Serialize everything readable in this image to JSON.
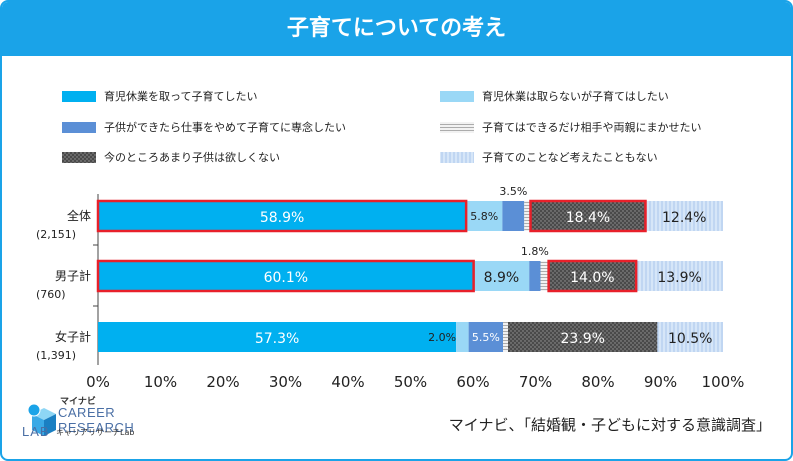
{
  "header": {
    "title": "子育てについての考え"
  },
  "source_note": "マイナビ、「結婚観・子どもに対する意識調査」",
  "brand": {
    "small_label": "マイナビ",
    "name_line1": "CAREER RESEARCH",
    "name_line2": "LAB",
    "sub_label": "キャリアリサーチLab"
  },
  "colors": {
    "accent": "#1aa3e8",
    "highlight_border": "#e8202a",
    "s1": "#00b0f0",
    "s2": "#9ad8f6",
    "s3": "#5b8fd6",
    "s4": "#e6e6e6",
    "s5": "#4d4d4d",
    "s6": "#c9dcf5"
  },
  "chart_data": {
    "type": "bar",
    "orientation": "horizontal",
    "stacked": true,
    "categories": [
      "全体",
      "男子計",
      "女子計"
    ],
    "category_counts": [
      "(2,151)",
      "(760)",
      "(1,391)"
    ],
    "xlim": [
      0,
      100
    ],
    "x_ticks": [
      "0%",
      "10%",
      "20%",
      "30%",
      "40%",
      "50%",
      "60%",
      "70%",
      "80%",
      "90%",
      "100%"
    ],
    "grid": false,
    "legend_position": "top",
    "series": [
      {
        "name": "育児休業を取って子育てしたい",
        "values": [
          58.9,
          60.1,
          57.3
        ],
        "labels": [
          "58.9%",
          "60.1%",
          "57.3%"
        ],
        "pattern": "solid",
        "color": "#00b0f0"
      },
      {
        "name": "育児休業は取らないが子育てはしたい",
        "values": [
          5.8,
          8.9,
          2.0
        ],
        "labels": [
          "5.8%",
          "8.9%",
          "2.0%"
        ],
        "pattern": "solid",
        "color": "#9ad8f6"
      },
      {
        "name": "子供ができたら仕事をやめて子育てに専念したい",
        "values": [
          3.5,
          1.8,
          5.5
        ],
        "labels": [
          "3.5%",
          "1.8%",
          "5.5%"
        ],
        "pattern": "solid",
        "color": "#5b8fd6"
      },
      {
        "name": "子育てはできるだけ相手や両親にまかせたい",
        "values": [
          1.0,
          1.3,
          0.8
        ],
        "labels": [
          "",
          "",
          ""
        ],
        "pattern": "hlines",
        "color": "#e6e6e6"
      },
      {
        "name": "今のところあまり子供は欲しくない",
        "values": [
          18.4,
          14.0,
          23.9
        ],
        "labels": [
          "18.4%",
          "14.0%",
          "23.9%"
        ],
        "pattern": "dots",
        "color": "#4d4d4d"
      },
      {
        "name": "子育てのことなど考えたこともない",
        "values": [
          12.4,
          13.9,
          10.5
        ],
        "labels": [
          "12.4%",
          "13.9%",
          "10.5%"
        ],
        "pattern": "vlines",
        "color": "#c9dcf5"
      }
    ],
    "highlighted": [
      {
        "category": "全体",
        "series": [
          0,
          4
        ]
      },
      {
        "category": "男子計",
        "series": [
          0,
          4
        ]
      }
    ]
  }
}
